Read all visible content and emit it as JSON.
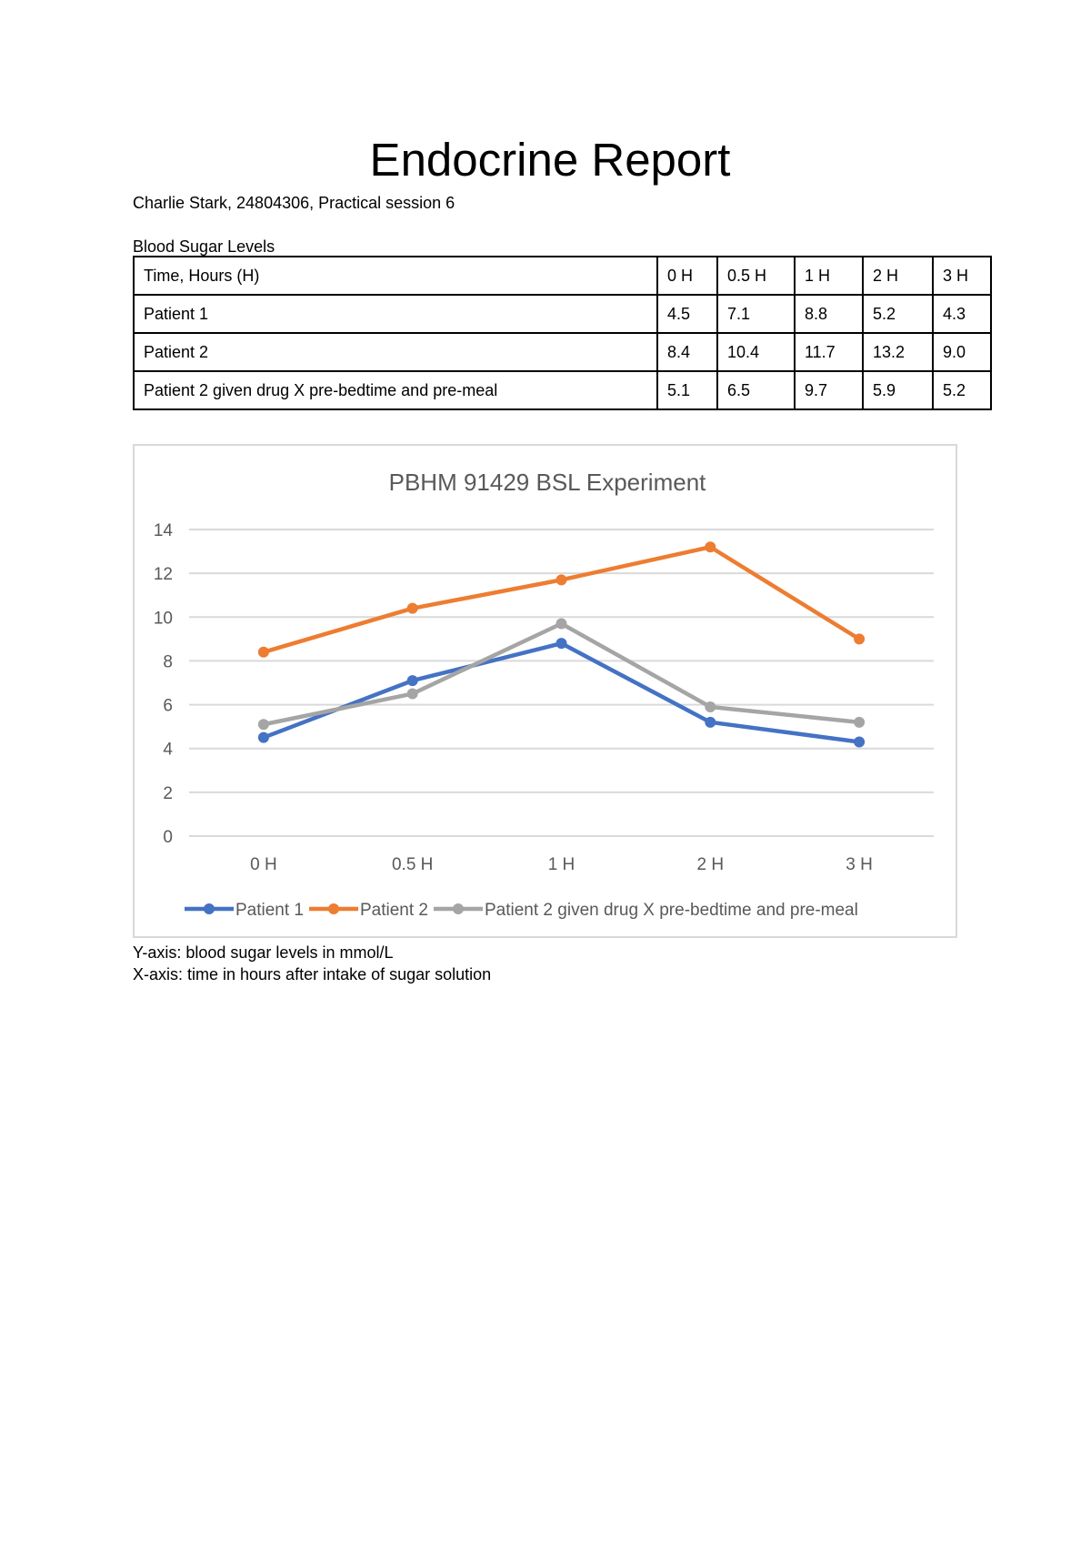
{
  "document": {
    "title": "Endocrine Report",
    "subtitle": "Charlie Stark, 24804306, Practical session 6",
    "table_caption": "Blood Sugar Levels",
    "table": {
      "header": [
        "Time, Hours (H)",
        "0 H",
        "0.5 H",
        "1 H",
        "2 H",
        "3 H"
      ],
      "rows": [
        [
          "Patient 1",
          "4.5",
          "7.1",
          "8.8",
          "5.2",
          "4.3"
        ],
        [
          "Patient 2",
          "8.4",
          "10.4",
          "11.7",
          "13.2",
          "9.0"
        ],
        [
          "Patient 2 given drug X pre-bedtime and pre-meal",
          "5.1",
          "6.5",
          "9.7",
          "5.9",
          "5.2"
        ]
      ]
    },
    "captions": {
      "y_axis": "Y-axis: blood sugar levels in mmol/L",
      "x_axis": "X-axis: time in hours after intake of sugar solution"
    }
  },
  "chart_data": {
    "type": "line",
    "title": "PBHM 91429 BSL Experiment",
    "xlabel": "",
    "ylabel": "",
    "categories": [
      "0 H",
      "0.5 H",
      "1 H",
      "2 H",
      "3 H"
    ],
    "ylim": [
      0,
      14
    ],
    "yticks": [
      0,
      2,
      4,
      6,
      8,
      10,
      12,
      14
    ],
    "grid": true,
    "legend_position": "bottom",
    "series": [
      {
        "name": "Patient 1",
        "color": "#4472c4",
        "values": [
          4.5,
          7.1,
          8.8,
          5.2,
          4.3
        ]
      },
      {
        "name": "Patient 2",
        "color": "#ed7d31",
        "values": [
          8.4,
          10.4,
          11.7,
          13.2,
          9.0
        ]
      },
      {
        "name": "Patient 2 given drug X pre-bedtime and pre-meal",
        "color": "#a5a5a5",
        "values": [
          5.1,
          6.5,
          9.7,
          5.9,
          5.2
        ]
      }
    ]
  }
}
